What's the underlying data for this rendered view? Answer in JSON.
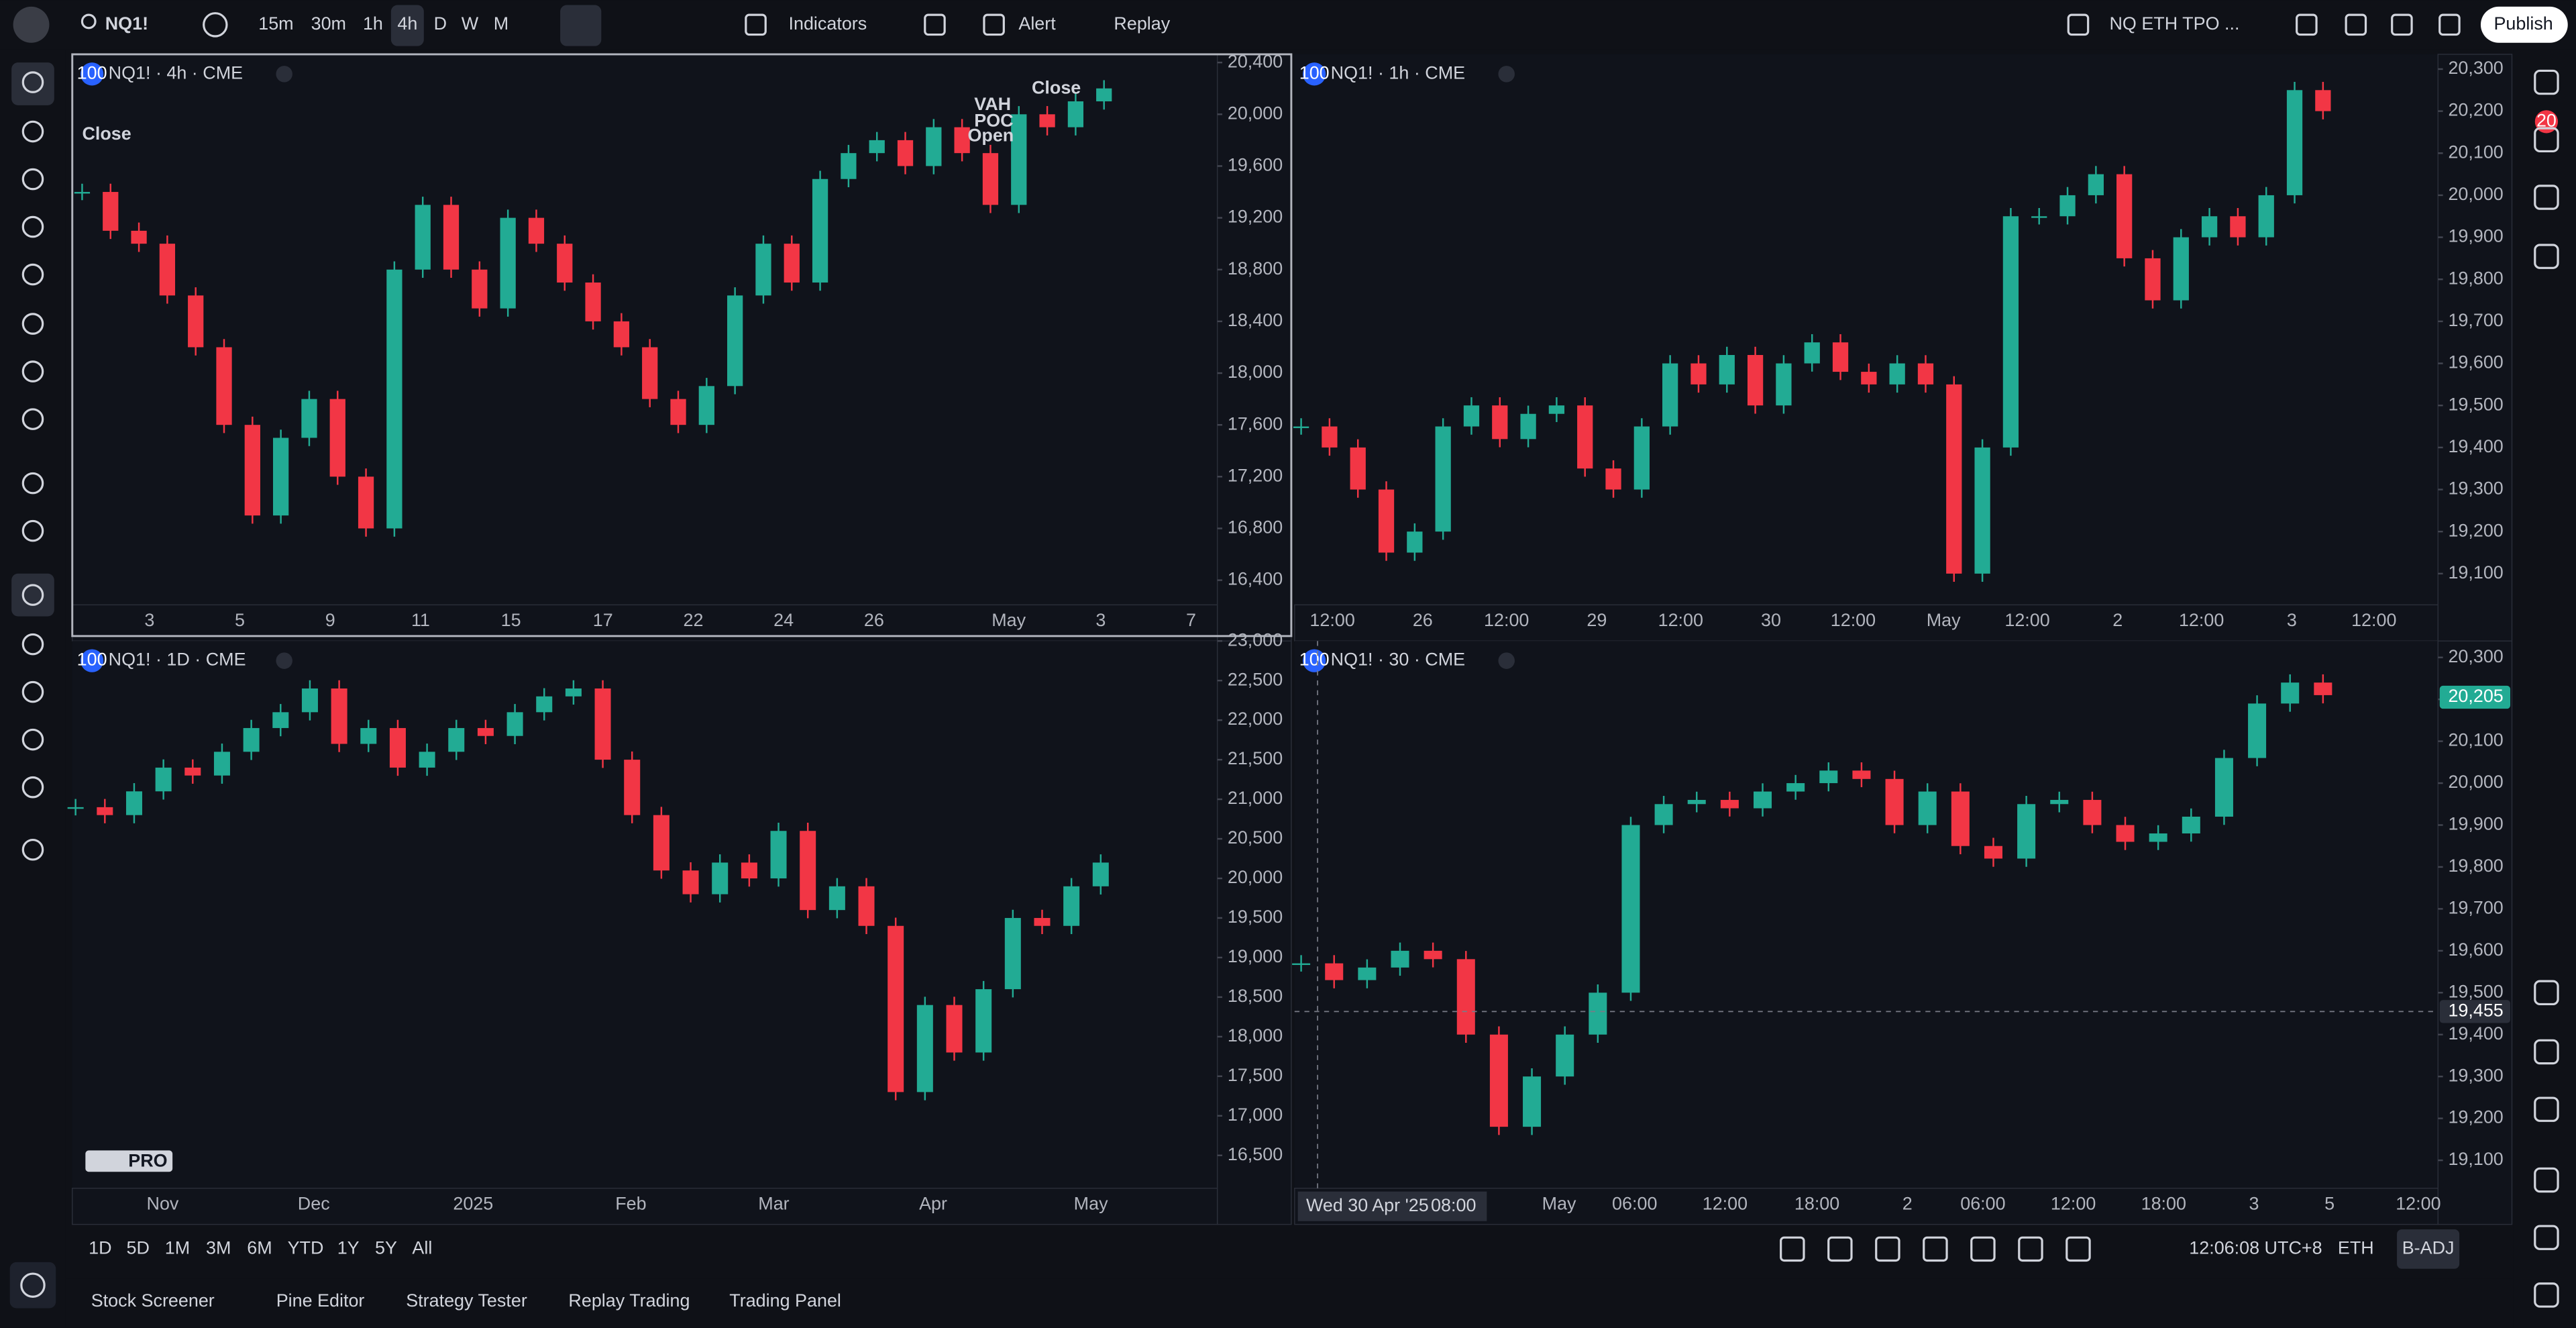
{
  "toolbar": {
    "symbol": "NQ1!",
    "intervals": [
      "15m",
      "30m",
      "1h",
      "4h",
      "D",
      "W",
      "M"
    ],
    "indicators": "Indicators",
    "alert": "Alert",
    "replay": "Replay",
    "layout_name": "NQ ETH TPO ...",
    "publish": "Publish"
  },
  "right_sidebar": {
    "alerts_count": 20
  },
  "colors": {
    "up": "#22ab94",
    "down": "#f23645"
  },
  "panes": [
    {
      "title": "NQ1! · 4h · CME",
      "badge": 100,
      "closes": [
        19400,
        19100,
        19000,
        18600,
        18200,
        17600,
        16900,
        17500,
        17800,
        17200,
        16800,
        18800,
        19300,
        18800,
        18500,
        19200,
        19000,
        18700,
        18400,
        18200,
        17800,
        17600,
        17900,
        18600,
        19000,
        18700,
        19500,
        19700,
        19800,
        19600,
        19900,
        19700,
        19300,
        20000,
        19900,
        20100,
        20200
      ],
      "ylim": [
        16400,
        20400
      ],
      "yticks": [
        {
          "value": 16400,
          "label": "16,400"
        },
        {
          "value": 16800,
          "label": "16,800"
        },
        {
          "value": 17200,
          "label": "17,200"
        },
        {
          "value": 17600,
          "label": "17,600"
        },
        {
          "value": 18000,
          "label": "18,000"
        },
        {
          "value": 18400,
          "label": "18,400"
        },
        {
          "value": 18800,
          "label": "18,800"
        },
        {
          "value": 19200,
          "label": "19,200"
        },
        {
          "value": 19600,
          "label": "19,600"
        },
        {
          "value": 20000,
          "label": "20,000"
        },
        {
          "value": 20400,
          "label": "20,400"
        }
      ],
      "xlabels": [
        "3",
        "5",
        "9",
        "11",
        "15",
        "17",
        "22",
        "24",
        "26",
        "May",
        "3",
        "7"
      ],
      "annotations": [
        "Close",
        "VAH",
        "POC",
        "Open",
        "Close"
      ]
    },
    {
      "title": "NQ1! · 1h · CME",
      "badge": 100,
      "closes": [
        19450,
        19400,
        19300,
        19150,
        19200,
        19450,
        19500,
        19420,
        19480,
        19500,
        19350,
        19300,
        19450,
        19600,
        19550,
        19620,
        19500,
        19600,
        19650,
        19580,
        19550,
        19600,
        19550,
        19100,
        19400,
        19950,
        19950,
        20000,
        20050,
        19850,
        19750,
        19900,
        19950,
        19900,
        20000,
        20250,
        20200
      ],
      "ylim": [
        19100,
        20300
      ],
      "yticks": [
        {
          "value": 19100,
          "label": "19,100"
        },
        {
          "value": 19200,
          "label": "19,200"
        },
        {
          "value": 19300,
          "label": "19,300"
        },
        {
          "value": 19400,
          "label": "19,400"
        },
        {
          "value": 19500,
          "label": "19,500"
        },
        {
          "value": 19600,
          "label": "19,600"
        },
        {
          "value": 19700,
          "label": "19,700"
        },
        {
          "value": 19800,
          "label": "19,800"
        },
        {
          "value": 19900,
          "label": "19,900"
        },
        {
          "value": 20000,
          "label": "20,000"
        },
        {
          "value": 20100,
          "label": "20,100"
        },
        {
          "value": 20200,
          "label": "20,200"
        },
        {
          "value": 20300,
          "label": "20,300"
        }
      ],
      "xlabels": [
        "12:00",
        "26",
        "12:00",
        "29",
        "12:00",
        "30",
        "12:00",
        "May",
        "12:00",
        "2",
        "12:00",
        "3",
        "12:00"
      ]
    },
    {
      "title": "NQ1! · 1D · CME",
      "badge": 100,
      "closes": [
        20900,
        20800,
        21100,
        21400,
        21300,
        21600,
        21900,
        22100,
        22400,
        21700,
        21900,
        21400,
        21600,
        21900,
        21800,
        22100,
        22300,
        22400,
        21500,
        20800,
        20100,
        19800,
        20200,
        20000,
        20600,
        19600,
        19900,
        19400,
        17300,
        18400,
        17800,
        18600,
        19500,
        19400,
        19900,
        20200
      ],
      "ylim": [
        16500,
        23000
      ],
      "yticks": [
        {
          "value": 16500,
          "label": "16,500"
        },
        {
          "value": 17000,
          "label": "17,000"
        },
        {
          "value": 17500,
          "label": "17,500"
        },
        {
          "value": 18000,
          "label": "18,000"
        },
        {
          "value": 18500,
          "label": "18,500"
        },
        {
          "value": 19000,
          "label": "19,000"
        },
        {
          "value": 19500,
          "label": "19,500"
        },
        {
          "value": 20000,
          "label": "20,000"
        },
        {
          "value": 20500,
          "label": "20,500"
        },
        {
          "value": 21000,
          "label": "21,000"
        },
        {
          "value": 21500,
          "label": "21,500"
        },
        {
          "value": 22000,
          "label": "22,000"
        },
        {
          "value": 22500,
          "label": "22,500"
        },
        {
          "value": 23000,
          "label": "23,000"
        }
      ],
      "xlabels": [
        "Nov",
        "Dec",
        "2025",
        "Feb",
        "Mar",
        "Apr",
        "May"
      ],
      "logo_text": "PRO"
    },
    {
      "title": "NQ1! · 30 · CME",
      "badge": 100,
      "closes": [
        19570,
        19530,
        19560,
        19600,
        19580,
        19400,
        19180,
        19300,
        19400,
        19500,
        19900,
        19950,
        19960,
        19940,
        19980,
        20000,
        20030,
        20010,
        19900,
        19980,
        19850,
        19820,
        19950,
        19960,
        19900,
        19860,
        19880,
        19920,
        20060,
        20190,
        20240,
        20210
      ],
      "ylim": [
        19100,
        20300
      ],
      "yticks": [
        {
          "value": 19100,
          "label": "19,100"
        },
        {
          "value": 19200,
          "label": "19,200"
        },
        {
          "value": 19300,
          "label": "19,300"
        },
        {
          "value": 19400,
          "label": "19,400"
        },
        {
          "value": 19500,
          "label": "19,500"
        },
        {
          "value": 19600,
          "label": "19,600"
        },
        {
          "value": 19700,
          "label": "19,700"
        },
        {
          "value": 19800,
          "label": "19,800"
        },
        {
          "value": 19900,
          "label": "19,900"
        },
        {
          "value": 20000,
          "label": "20,000"
        },
        {
          "value": 20100,
          "label": "20,100"
        },
        {
          "value": 20200,
          "label": "20,200"
        },
        {
          "value": 20300,
          "label": "20,300"
        }
      ],
      "xlabels": [
        "May",
        "06:00",
        "12:00",
        "18:00",
        "2",
        "06:00",
        "12:00",
        "18:00",
        "3",
        "5",
        "12:00"
      ],
      "price_tags": [
        {
          "value": 20205,
          "label": "20,205"
        },
        {
          "value": 19455,
          "label": "19,455"
        }
      ],
      "crosshair_time": [
        "Wed 30 Apr '25",
        "08:00"
      ]
    }
  ],
  "bottom_bar": {
    "ranges": [
      "1D",
      "5D",
      "1M",
      "3M",
      "6M",
      "YTD",
      "1Y",
      "5Y",
      "All"
    ],
    "clock": "12:06:08 UTC+8",
    "session": "ETH",
    "adjustment": "B-ADJ"
  },
  "tabs": [
    "Stock Screener",
    "Pine Editor",
    "Strategy Tester",
    "Replay Trading",
    "Trading Panel"
  ]
}
